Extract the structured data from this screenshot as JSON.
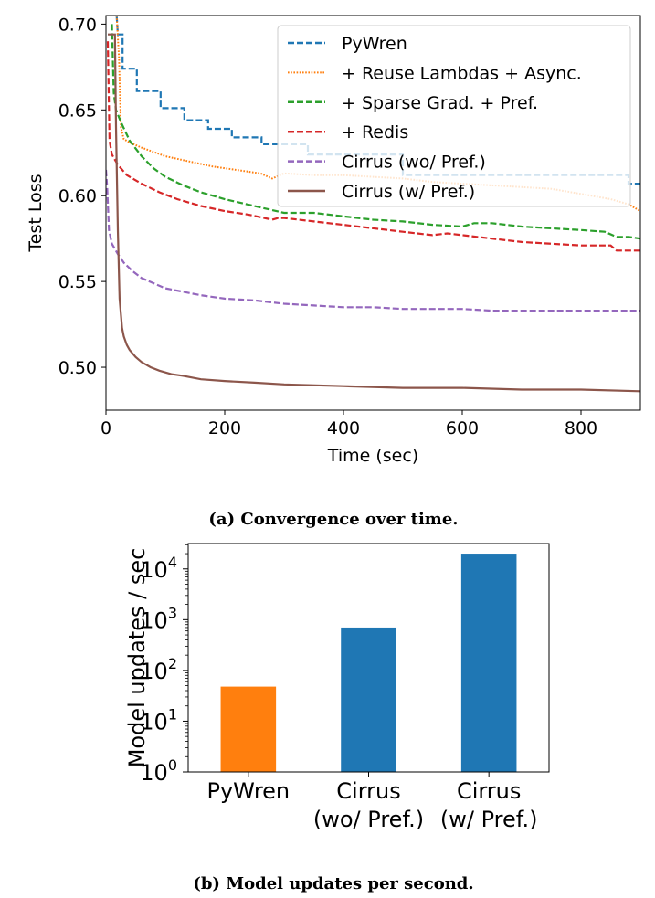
{
  "captions": {
    "a": "(a) Convergence over time.",
    "b": "(b) Model updates per second."
  },
  "chart_data": [
    {
      "type": "line",
      "title": "",
      "xlabel": "Time (sec)",
      "ylabel": "Test Loss",
      "xlim": [
        0,
        900
      ],
      "ylim": [
        0.475,
        0.705
      ],
      "xticks": [
        0,
        200,
        400,
        600,
        800
      ],
      "yticks": [
        0.5,
        0.55,
        0.6,
        0.65,
        0.7
      ],
      "xtick_labels": [
        "0",
        "200",
        "400",
        "600",
        "800"
      ],
      "ytick_labels": [
        "0.50",
        "0.55",
        "0.60",
        "0.65",
        "0.70"
      ],
      "grid": false,
      "legend_position": "top-right",
      "series": [
        {
          "name": "PyWren",
          "color": "#1f77b4",
          "style": "dashed",
          "x": [
            18,
            20,
            20,
            28,
            28,
            52,
            52,
            92,
            92,
            132,
            132,
            172,
            172,
            212,
            212,
            262,
            262,
            340,
            340,
            500,
            500,
            880,
            880,
            900
          ],
          "y": [
            0.705,
            0.694,
            0.694,
            0.694,
            0.674,
            0.674,
            0.661,
            0.661,
            0.651,
            0.651,
            0.644,
            0.644,
            0.639,
            0.639,
            0.634,
            0.634,
            0.63,
            0.63,
            0.624,
            0.624,
            0.612,
            0.612,
            0.607,
            0.607
          ]
        },
        {
          "name": "+ Reuse Lambdas + Async.",
          "color": "#ff7f0e",
          "style": "dotted",
          "x": [
            18,
            22,
            25,
            30,
            40,
            60,
            100,
            140,
            180,
            220,
            260,
            280,
            300,
            350,
            400,
            450,
            500,
            550,
            600,
            650,
            700,
            750,
            800,
            850,
            880,
            900
          ],
          "y": [
            0.705,
            0.68,
            0.64,
            0.633,
            0.631,
            0.628,
            0.623,
            0.62,
            0.617,
            0.615,
            0.613,
            0.61,
            0.613,
            0.612,
            0.612,
            0.611,
            0.61,
            0.608,
            0.607,
            0.606,
            0.605,
            0.604,
            0.601,
            0.598,
            0.595,
            0.591
          ]
        },
        {
          "name": "+ Sparse Grad. + Pref.",
          "color": "#2ca02c",
          "style": "dashed",
          "x": [
            10,
            13,
            17,
            25,
            40,
            60,
            80,
            100,
            130,
            160,
            200,
            250,
            300,
            350,
            400,
            450,
            500,
            550,
            600,
            620,
            650,
            700,
            750,
            800,
            840,
            860,
            880,
            900
          ],
          "y": [
            0.7,
            0.66,
            0.65,
            0.643,
            0.632,
            0.623,
            0.616,
            0.611,
            0.606,
            0.602,
            0.598,
            0.594,
            0.59,
            0.59,
            0.588,
            0.586,
            0.585,
            0.583,
            0.582,
            0.584,
            0.584,
            0.582,
            0.581,
            0.58,
            0.579,
            0.576,
            0.576,
            0.575
          ]
        },
        {
          "name": "+ Redis",
          "color": "#d62728",
          "style": "dashed",
          "x": [
            3,
            6,
            10,
            20,
            35,
            60,
            90,
            120,
            160,
            200,
            240,
            280,
            290,
            300,
            350,
            400,
            450,
            500,
            550,
            575,
            600,
            650,
            700,
            750,
            800,
            850,
            860,
            900
          ],
          "y": [
            0.69,
            0.632,
            0.624,
            0.618,
            0.612,
            0.607,
            0.602,
            0.598,
            0.594,
            0.591,
            0.589,
            0.586,
            0.587,
            0.587,
            0.585,
            0.583,
            0.581,
            0.579,
            0.577,
            0.578,
            0.577,
            0.575,
            0.573,
            0.572,
            0.571,
            0.571,
            0.568,
            0.568
          ]
        },
        {
          "name": "Cirrus (wo/ Pref.)",
          "color": "#9467bd",
          "style": "dashed",
          "x": [
            0,
            2,
            5,
            10,
            20,
            30,
            45,
            60,
            80,
            100,
            130,
            160,
            200,
            250,
            300,
            350,
            400,
            450,
            500,
            550,
            600,
            650,
            700,
            750,
            800,
            850,
            900
          ],
          "y": [
            0.615,
            0.605,
            0.58,
            0.572,
            0.566,
            0.561,
            0.556,
            0.552,
            0.549,
            0.546,
            0.544,
            0.542,
            0.54,
            0.539,
            0.537,
            0.536,
            0.535,
            0.535,
            0.534,
            0.534,
            0.534,
            0.533,
            0.533,
            0.533,
            0.533,
            0.533,
            0.533
          ]
        },
        {
          "name": "Cirrus (w/ Pref.)",
          "color": "#8c564b",
          "style": "solid",
          "x": [
            3,
            15,
            17,
            20,
            23,
            27,
            30,
            35,
            40,
            50,
            60,
            75,
            90,
            110,
            130,
            160,
            200,
            250,
            300,
            400,
            500,
            600,
            700,
            800,
            900
          ],
          "y": [
            0.694,
            0.694,
            0.64,
            0.58,
            0.54,
            0.523,
            0.518,
            0.513,
            0.51,
            0.506,
            0.503,
            0.5,
            0.498,
            0.496,
            0.495,
            0.493,
            0.492,
            0.491,
            0.49,
            0.489,
            0.488,
            0.488,
            0.487,
            0.487,
            0.486
          ]
        }
      ]
    },
    {
      "type": "bar",
      "title": "",
      "xlabel": "",
      "ylabel": "Model updates / sec",
      "yscale": "log",
      "ylim": [
        1,
        31623
      ],
      "ytick_labels": [
        {
          "base": "10",
          "exp": "0",
          "value": 1
        },
        {
          "base": "10",
          "exp": "1",
          "value": 10
        },
        {
          "base": "10",
          "exp": "2",
          "value": 100
        },
        {
          "base": "10",
          "exp": "3",
          "value": 1000
        },
        {
          "base": "10",
          "exp": "4",
          "value": 10000
        }
      ],
      "categories": [
        {
          "line1": "PyWren",
          "line2": ""
        },
        {
          "line1": "Cirrus",
          "line2": "(wo/ Pref.)"
        },
        {
          "line1": "Cirrus",
          "line2": "(w/ Pref.)"
        }
      ],
      "values": [
        48,
        700,
        20000
      ],
      "colors": [
        "#ff7f0e",
        "#1f77b4",
        "#1f77b4"
      ],
      "grid": false
    }
  ]
}
